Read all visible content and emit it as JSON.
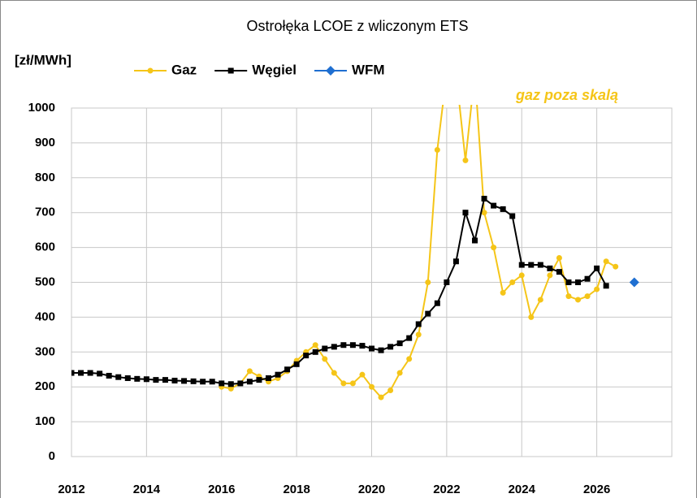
{
  "chart_data": {
    "type": "line",
    "title": "Ostrołęka  LCOE z wliczonym ETS",
    "y_label": "[zł/MWh]",
    "annotation": "gaz poza skalą",
    "xlim": [
      2012,
      2028
    ],
    "xticks": [
      2012,
      2014,
      2016,
      2018,
      2020,
      2022,
      2024,
      2026
    ],
    "ylim": [
      0,
      1000
    ],
    "yticks": [
      0,
      100,
      200,
      300,
      400,
      500,
      600,
      700,
      800,
      900,
      1000
    ],
    "grid": true,
    "legend": "top",
    "series": [
      {
        "name": "Gaz",
        "color": "#f5c518",
        "marker": "circle",
        "x": [
          2016,
          2016.25,
          2016.5,
          2016.75,
          2017,
          2017.25,
          2017.5,
          2017.75,
          2018,
          2018.25,
          2018.5,
          2018.75,
          2019,
          2019.25,
          2019.5,
          2019.75,
          2020,
          2020.25,
          2020.5,
          2020.75,
          2021,
          2021.25,
          2021.5,
          2021.75,
          2022,
          2022.25,
          2022.5,
          2022.75,
          2023,
          2023.25,
          2023.5,
          2023.75,
          2024,
          2024.25,
          2024.5,
          2024.75,
          2025,
          2025.25,
          2025.5,
          2025.75,
          2026,
          2026.25,
          2026.5
        ],
        "values": [
          200,
          195,
          210,
          245,
          230,
          215,
          225,
          245,
          275,
          300,
          320,
          280,
          240,
          210,
          210,
          235,
          200,
          170,
          190,
          240,
          280,
          350,
          500,
          880,
          1100,
          1100,
          850,
          1100,
          700,
          600,
          470,
          500,
          520,
          400,
          450,
          520,
          570,
          460,
          450,
          460,
          480,
          560,
          545
        ]
      },
      {
        "name": "Węgiel",
        "color": "#000000",
        "marker": "square",
        "x": [
          2012,
          2012.25,
          2012.5,
          2012.75,
          2013,
          2013.25,
          2013.5,
          2013.75,
          2014,
          2014.25,
          2014.5,
          2014.75,
          2015,
          2015.25,
          2015.5,
          2015.75,
          2016,
          2016.25,
          2016.5,
          2016.75,
          2017,
          2017.25,
          2017.5,
          2017.75,
          2018,
          2018.25,
          2018.5,
          2018.75,
          2019,
          2019.25,
          2019.5,
          2019.75,
          2020,
          2020.25,
          2020.5,
          2020.75,
          2021,
          2021.25,
          2021.5,
          2021.75,
          2022,
          2022.25,
          2022.5,
          2022.75,
          2023,
          2023.25,
          2023.5,
          2023.75,
          2024,
          2024.25,
          2024.5,
          2024.75,
          2025,
          2025.25,
          2025.5,
          2025.75,
          2026,
          2026.25
        ],
        "values": [
          240,
          240,
          240,
          238,
          232,
          228,
          225,
          223,
          222,
          220,
          220,
          218,
          217,
          216,
          215,
          215,
          210,
          208,
          210,
          215,
          220,
          225,
          235,
          250,
          265,
          290,
          300,
          310,
          315,
          320,
          320,
          318,
          310,
          305,
          315,
          325,
          340,
          380,
          410,
          440,
          500,
          560,
          700,
          620,
          740,
          720,
          710,
          690,
          550,
          550,
          550,
          540,
          530,
          500,
          500,
          510,
          540,
          490
        ]
      },
      {
        "name": "WFM",
        "color": "#1f6fd1",
        "marker": "diamond",
        "x": [
          2027
        ],
        "values": [
          500
        ]
      }
    ]
  }
}
